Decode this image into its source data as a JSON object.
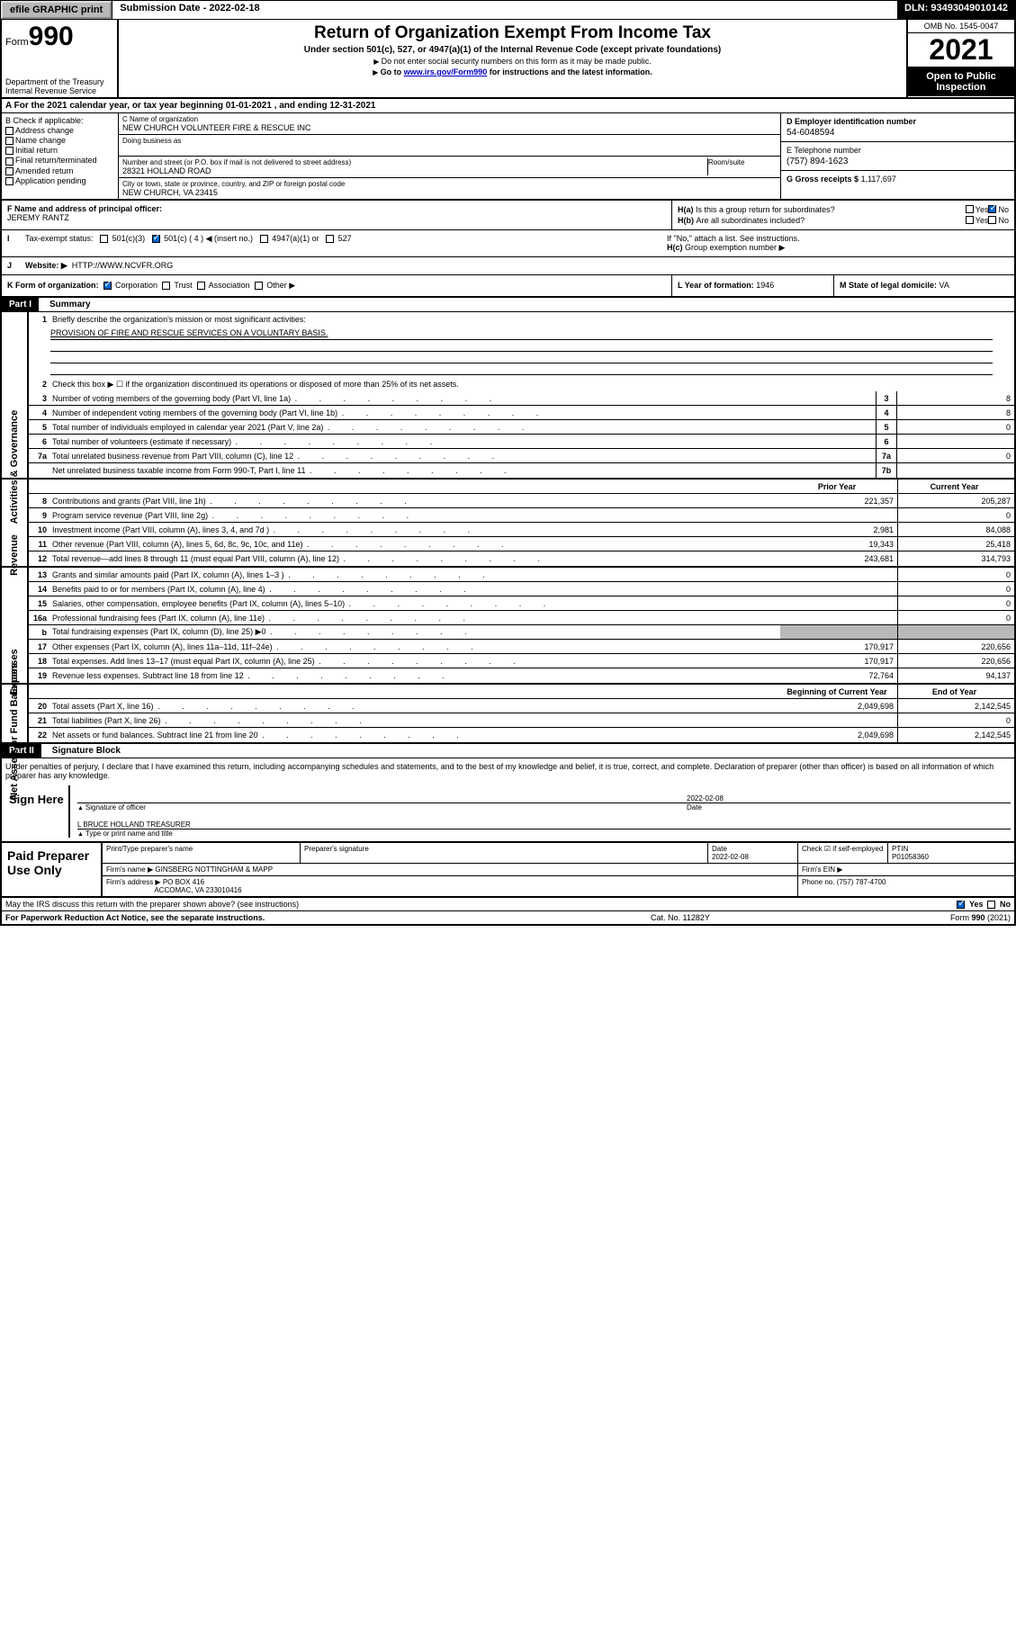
{
  "topbar": {
    "efile": "efile GRAPHIC print",
    "submission_label": "Submission Date - 2022-02-18",
    "dln": "DLN: 93493049010142"
  },
  "header": {
    "form": "Form",
    "num": "990",
    "dept": "Department of the Treasury\nInternal Revenue Service",
    "title": "Return of Organization Exempt From Income Tax",
    "subtitle": "Under section 501(c), 527, or 4947(a)(1) of the Internal Revenue Code (except private foundations)",
    "note1": "Do not enter social security numbers on this form as it may be made public.",
    "note2_pre": "Go to ",
    "note2_link": "www.irs.gov/Form990",
    "note2_post": " for instructions and the latest information.",
    "omb": "OMB No. 1545-0047",
    "year": "2021",
    "inspect": "Open to Public Inspection"
  },
  "A": {
    "text": "For the 2021 calendar year, or tax year beginning 01-01-2021   , and ending 12-31-2021"
  },
  "B": {
    "label": "B Check if applicable:",
    "items": [
      "Address change",
      "Name change",
      "Initial return",
      "Final return/terminated",
      "Amended return",
      "Application pending"
    ]
  },
  "C": {
    "name_lbl": "C Name of organization",
    "name": "NEW CHURCH VOLUNTEER FIRE & RESCUE INC",
    "dba_lbl": "Doing business as",
    "dba": "",
    "addr_lbl": "Number and street (or P.O. box if mail is not delivered to street address)",
    "room_lbl": "Room/suite",
    "addr": "28321 HOLLAND ROAD",
    "city_lbl": "City or town, state or province, country, and ZIP or foreign postal code",
    "city": "NEW CHURCH, VA  23415"
  },
  "D": {
    "lbl": "D Employer identification number",
    "val": "54-6048594"
  },
  "E": {
    "lbl": "E Telephone number",
    "val": "(757) 894-1623"
  },
  "G": {
    "lbl": "G Gross receipts $",
    "val": "1,117,697"
  },
  "F": {
    "lbl": "F  Name and address of principal officer:",
    "val": "JEREMY RANTZ"
  },
  "H": {
    "a": "Is this a group return for subordinates?",
    "b": "Are all subordinates included?",
    "bnote": "If \"No,\" attach a list. See instructions.",
    "c": "Group exemption number ▶",
    "yes": "Yes",
    "no": "No"
  },
  "I": {
    "lbl": "Tax-exempt status:",
    "opts": [
      "501(c)(3)",
      "501(c) ( 4 ) ◀ (insert no.)",
      "4947(a)(1) or",
      "527"
    ]
  },
  "J": {
    "lbl": "Website: ▶",
    "val": "HTTP://WWW.NCVFR.ORG"
  },
  "K": {
    "lbl": "K Form of organization:",
    "opts": [
      "Corporation",
      "Trust",
      "Association",
      "Other ▶"
    ]
  },
  "L": {
    "lbl": "L Year of formation:",
    "val": "1946"
  },
  "M": {
    "lbl": "M State of legal domicile:",
    "val": "VA"
  },
  "partI": {
    "label": "Part I",
    "title": "Summary"
  },
  "summary": {
    "l1": "Briefly describe the organization's mission or most significant activities:",
    "mission": "PROVISION OF FIRE AND RESCUE SERVICES ON A VOLUNTARY BASIS.",
    "l2": "Check this box ▶ ☐  if the organization discontinued its operations or disposed of more than 25% of its net assets.",
    "rows_gov": [
      {
        "n": "3",
        "t": "Number of voting members of the governing body (Part VI, line 1a)",
        "bn": "3",
        "v": "8"
      },
      {
        "n": "4",
        "t": "Number of independent voting members of the governing body (Part VI, line 1b)",
        "bn": "4",
        "v": "8"
      },
      {
        "n": "5",
        "t": "Total number of individuals employed in calendar year 2021 (Part V, line 2a)",
        "bn": "5",
        "v": "0"
      },
      {
        "n": "6",
        "t": "Total number of volunteers (estimate if necessary)",
        "bn": "6",
        "v": ""
      },
      {
        "n": "7a",
        "t": "Total unrelated business revenue from Part VIII, column (C), line 12",
        "bn": "7a",
        "v": "0"
      },
      {
        "n": "",
        "t": "Net unrelated business taxable income from Form 990-T, Part I, line 11",
        "bn": "7b",
        "v": ""
      }
    ],
    "col_prior": "Prior Year",
    "col_current": "Current Year",
    "rows_rev": [
      {
        "n": "8",
        "t": "Contributions and grants (Part VIII, line 1h)",
        "p": "221,357",
        "c": "205,287"
      },
      {
        "n": "9",
        "t": "Program service revenue (Part VIII, line 2g)",
        "p": "",
        "c": "0"
      },
      {
        "n": "10",
        "t": "Investment income (Part VIII, column (A), lines 3, 4, and 7d )",
        "p": "2,981",
        "c": "84,088"
      },
      {
        "n": "11",
        "t": "Other revenue (Part VIII, column (A), lines 5, 6d, 8c, 9c, 10c, and 11e)",
        "p": "19,343",
        "c": "25,418"
      },
      {
        "n": "12",
        "t": "Total revenue—add lines 8 through 11 (must equal Part VIII, column (A), line 12)",
        "p": "243,681",
        "c": "314,793"
      }
    ],
    "rows_exp": [
      {
        "n": "13",
        "t": "Grants and similar amounts paid (Part IX, column (A), lines 1–3 )",
        "p": "",
        "c": "0"
      },
      {
        "n": "14",
        "t": "Benefits paid to or for members (Part IX, column (A), line 4)",
        "p": "",
        "c": "0"
      },
      {
        "n": "15",
        "t": "Salaries, other compensation, employee benefits (Part IX, column (A), lines 5–10)",
        "p": "",
        "c": "0"
      },
      {
        "n": "16a",
        "t": "Professional fundraising fees (Part IX, column (A), line 11e)",
        "p": "",
        "c": "0"
      },
      {
        "n": "b",
        "t": "Total fundraising expenses (Part IX, column (D), line 25) ▶0",
        "p": "GRAY",
        "c": "GRAY"
      },
      {
        "n": "17",
        "t": "Other expenses (Part IX, column (A), lines 11a–11d, 11f–24e)",
        "p": "170,917",
        "c": "220,656"
      },
      {
        "n": "18",
        "t": "Total expenses. Add lines 13–17 (must equal Part IX, column (A), line 25)",
        "p": "170,917",
        "c": "220,656"
      },
      {
        "n": "19",
        "t": "Revenue less expenses. Subtract line 18 from line 12",
        "p": "72,764",
        "c": "94,137"
      }
    ],
    "col_begin": "Beginning of Current Year",
    "col_end": "End of Year",
    "rows_net": [
      {
        "n": "20",
        "t": "Total assets (Part X, line 16)",
        "p": "2,049,698",
        "c": "2,142,545"
      },
      {
        "n": "21",
        "t": "Total liabilities (Part X, line 26)",
        "p": "",
        "c": "0"
      },
      {
        "n": "22",
        "t": "Net assets or fund balances. Subtract line 21 from line 20",
        "p": "2,049,698",
        "c": "2,142,545"
      }
    ],
    "side_gov": "Activities & Governance",
    "side_rev": "Revenue",
    "side_exp": "Expenses",
    "side_net": "Net Assets or Fund Balances"
  },
  "partII": {
    "label": "Part II",
    "title": "Signature Block"
  },
  "sig": {
    "decl": "Under penalties of perjury, I declare that I have examined this return, including accompanying schedules and statements, and to the best of my knowledge and belief, it is true, correct, and complete. Declaration of preparer (other than officer) is based on all information of which preparer has any knowledge.",
    "sign_here": "Sign Here",
    "date": "2022-02-08",
    "sig_officer": "Signature of officer",
    "date_lbl": "Date",
    "name": "L BRUCE HOLLAND  TREASURER",
    "name_lbl": "Type or print name and title"
  },
  "prep": {
    "title": "Paid Preparer Use Only",
    "h": [
      "Print/Type preparer's name",
      "Preparer's signature",
      "Date",
      "",
      "PTIN"
    ],
    "date": "2022-02-08",
    "check": "Check ☑ if self-employed",
    "ptin": "P01058360",
    "firm_name_lbl": "Firm's name    ▶",
    "firm_name": "GINSBERG NOTTINGHAM & MAPP",
    "firm_ein_lbl": "Firm's EIN ▶",
    "firm_addr_lbl": "Firm's address ▶",
    "firm_addr": "PO BOX 416",
    "firm_city": "ACCOMAC, VA  233010416",
    "phone_lbl": "Phone no.",
    "phone": "(757) 787-4700"
  },
  "may": {
    "q": "May the IRS discuss this return with the preparer shown above? (see instructions)",
    "yes": "Yes",
    "no": "No"
  },
  "footer": {
    "pra": "For Paperwork Reduction Act Notice, see the separate instructions.",
    "cat": "Cat. No. 11282Y",
    "form": "Form 990 (2021)"
  }
}
